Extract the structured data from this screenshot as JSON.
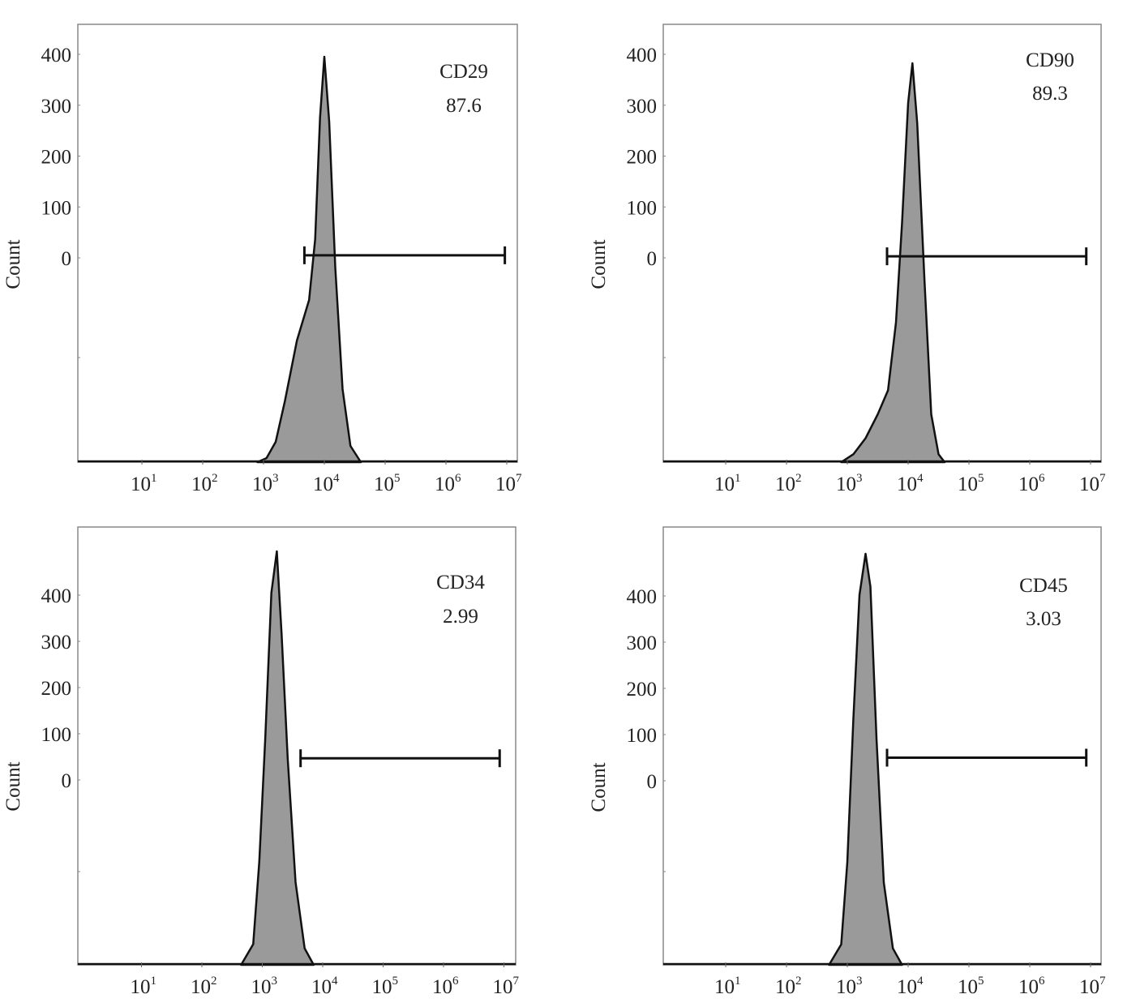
{
  "chart_data": [
    {
      "type": "area",
      "marker": "CD29",
      "percent_label": "87.6",
      "ylabel": "Count",
      "y_ticks": [
        0,
        100,
        200,
        300,
        400
      ],
      "x_scale": "log",
      "x_tick_base": "10",
      "x_tick_exponents": [
        1,
        2,
        3,
        4,
        5,
        6,
        7
      ],
      "xlim": [
        1,
        10000000
      ],
      "fill_color": "#9a9a9a",
      "gate": {
        "from": 4700,
        "to": 9300000,
        "level": 5
      },
      "histogram": [
        [
          794,
          0
        ],
        [
          1122,
          0.01
        ],
        [
          1585,
          0.05
        ],
        [
          2239,
          0.15
        ],
        [
          3548,
          0.3
        ],
        [
          5623,
          0.4
        ],
        [
          7079,
          0.55
        ],
        [
          8511,
          0.85
        ],
        [
          10000,
          1.0
        ],
        [
          12023,
          0.84
        ],
        [
          15136,
          0.48
        ],
        [
          19953,
          0.18
        ],
        [
          26915,
          0.04
        ],
        [
          39811,
          0
        ]
      ]
    },
    {
      "type": "area",
      "marker": "CD90",
      "percent_label": "89.3",
      "ylabel": "Count",
      "y_ticks": [
        0,
        100,
        200,
        300,
        400
      ],
      "x_scale": "log",
      "x_tick_base": "10",
      "x_tick_exponents": [
        1,
        2,
        3,
        4,
        5,
        6,
        7
      ],
      "xlim": [
        1,
        10000000
      ],
      "fill_color": "#9a9a9a",
      "gate": {
        "from": 4500,
        "to": 8500000,
        "level": 3
      },
      "histogram": [
        [
          794,
          0
        ],
        [
          1259,
          0.02
        ],
        [
          1995,
          0.06
        ],
        [
          3162,
          0.12
        ],
        [
          4677,
          0.18
        ],
        [
          6310,
          0.35
        ],
        [
          7943,
          0.6
        ],
        [
          10000,
          0.9
        ],
        [
          11749,
          1.0
        ],
        [
          14125,
          0.85
        ],
        [
          18621,
          0.45
        ],
        [
          23988,
          0.12
        ],
        [
          31623,
          0.02
        ],
        [
          39811,
          0
        ]
      ]
    },
    {
      "type": "area",
      "marker": "CD34",
      "percent_label": "2.99",
      "ylabel": "Count",
      "y_ticks": [
        0,
        100,
        200,
        300,
        400
      ],
      "x_scale": "log",
      "x_tick_base": "10",
      "x_tick_exponents": [
        1,
        2,
        3,
        4,
        5,
        6,
        7
      ],
      "xlim": [
        1,
        10000000
      ],
      "fill_color": "#9a9a9a",
      "gate": {
        "from": 4300,
        "to": 8500000,
        "level": 47
      },
      "histogram": [
        [
          447,
          0
        ],
        [
          708,
          0.05
        ],
        [
          891,
          0.25
        ],
        [
          1122,
          0.55
        ],
        [
          1413,
          0.9
        ],
        [
          1738,
          1.0
        ],
        [
          2089,
          0.8
        ],
        [
          2630,
          0.5
        ],
        [
          3548,
          0.2
        ],
        [
          5012,
          0.04
        ],
        [
          7079,
          0
        ]
      ]
    },
    {
      "type": "area",
      "marker": "CD45",
      "percent_label": "3.03",
      "ylabel": "Count",
      "y_ticks": [
        0,
        100,
        200,
        300,
        400
      ],
      "x_scale": "log",
      "x_tick_base": "10",
      "x_tick_exponents": [
        1,
        2,
        3,
        4,
        5,
        6,
        7
      ],
      "xlim": [
        1,
        10000000
      ],
      "fill_color": "#9a9a9a",
      "gate": {
        "from": 4500,
        "to": 8500000,
        "level": 50
      },
      "histogram": [
        [
          501,
          0
        ],
        [
          794,
          0.05
        ],
        [
          1000,
          0.25
        ],
        [
          1259,
          0.6
        ],
        [
          1585,
          0.9
        ],
        [
          1995,
          1.0
        ],
        [
          2399,
          0.92
        ],
        [
          3020,
          0.55
        ],
        [
          3981,
          0.2
        ],
        [
          5623,
          0.04
        ],
        [
          7943,
          0
        ]
      ]
    }
  ]
}
